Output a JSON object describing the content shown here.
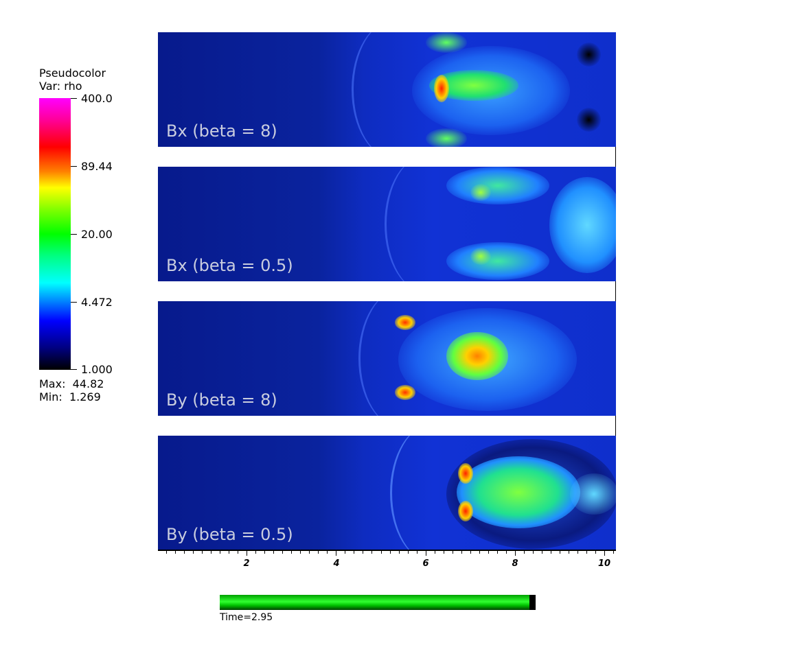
{
  "legend": {
    "title": "Pseudocolor",
    "variable": "Var: rho",
    "labels": [
      "400.0",
      "89.44",
      "20.00",
      "4.472",
      "1.000"
    ],
    "max": "Max:  44.82",
    "min": "Min:  1.269"
  },
  "panels": [
    {
      "label": "Bx (beta = 8)"
    },
    {
      "label": "Bx (beta = 0.5)"
    },
    {
      "label": "By (beta = 8)"
    },
    {
      "label": "By (beta = 0.5)"
    }
  ],
  "axis": {
    "tick_labels": [
      "2",
      "4",
      "6",
      "8",
      "10"
    ]
  },
  "time": {
    "label": "Time=2.95",
    "progress": 0.98
  },
  "colors": {
    "background_plasma": "#0a239e",
    "panel_label": "#c9cddf",
    "progress_green": "#30ff30"
  }
}
